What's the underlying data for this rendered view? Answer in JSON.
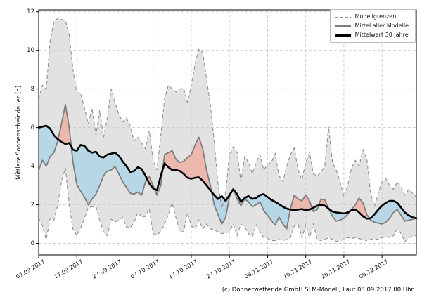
{
  "chart_data": {
    "type": "area",
    "title": "",
    "ylabel": "Mittlere Sonnenscheindauer [h]",
    "xlabel": "",
    "ylim": [
      -0.6,
      12.1
    ],
    "yticks": [
      0,
      2,
      4,
      6,
      8,
      10,
      12
    ],
    "grid": true,
    "x_tick_labels": [
      "07.09.2017",
      "17.09.2017",
      "27.09.2017",
      "07.10.2017",
      "17.10.2017",
      "27.10.2017",
      "06.11.2017",
      "16.11.2017",
      "26.11.2017",
      "06.12.2017"
    ],
    "x_tick_days": [
      0,
      10,
      20,
      30,
      40,
      50,
      60,
      70,
      80,
      90
    ],
    "x_total_days": 99,
    "legend_position": "top-right",
    "legend_entries": [
      {
        "label": "Modellgrenzen",
        "style": "dashed"
      },
      {
        "label": "Mittel aller Modelle",
        "style": "mean"
      },
      {
        "label": "Mittelwert 30 Jahre",
        "style": "climate"
      }
    ],
    "colors": {
      "band_fill": "#e2e2e2",
      "band_border": "#8f8f8f",
      "above_climate_fill": "#eeb1a4",
      "below_climate_fill": "#aed4e7",
      "model_mean_line": "#7d7d7d",
      "climate_line": "#000000",
      "grid": "#cbcbcb",
      "spine": "#000000"
    },
    "series": [
      {
        "id": "model_max",
        "name": "Modellgrenzen (Maximum)",
        "values": [
          7.5,
          8.2,
          8.0,
          10.5,
          11.5,
          11.65,
          11.6,
          11.55,
          10.8,
          9.0,
          7.8,
          7.8,
          7.0,
          6.2,
          7.0,
          5.6,
          6.9,
          5.5,
          6.5,
          8.0,
          7.3,
          6.7,
          6.3,
          6.5,
          6.1,
          5.3,
          5.5,
          5.2,
          4.9,
          5.85,
          4.3,
          3.8,
          5.6,
          7.5,
          8.2,
          8.0,
          7.85,
          8.0,
          8.05,
          7.3,
          8.2,
          9.3,
          10.05,
          9.9,
          8.5,
          7.2,
          5.3,
          3.1,
          1.8,
          2.6,
          4.6,
          5.0,
          4.7,
          3.2,
          4.5,
          4.2,
          3.6,
          4.2,
          4.6,
          3.8,
          4.1,
          4.2,
          4.65,
          3.5,
          3.2,
          4.0,
          4.6,
          4.95,
          3.8,
          3.3,
          4.2,
          4.7,
          3.6,
          3.5,
          3.7,
          4.0,
          6.05,
          4.2,
          3.8,
          3.2,
          2.4,
          3.0,
          3.9,
          4.3,
          4.0,
          4.85,
          4.4,
          2.6,
          1.9,
          2.6,
          3.2,
          3.35,
          3.0,
          2.8,
          3.2,
          2.9,
          2.5,
          2.8,
          2.6,
          2.4
        ]
      },
      {
        "id": "model_min",
        "name": "Modellgrenzen (Minimum)",
        "values": [
          1.3,
          0.9,
          0.2,
          1.3,
          1.2,
          2.0,
          3.2,
          3.9,
          2.0,
          0.75,
          0.4,
          0.8,
          1.3,
          1.85,
          1.9,
          1.9,
          1.2,
          0.6,
          0.4,
          1.25,
          1.1,
          1.2,
          1.35,
          0.85,
          0.8,
          1.1,
          1.6,
          1.35,
          1.4,
          1.8,
          0.5,
          0.45,
          0.6,
          1.0,
          1.5,
          2.1,
          1.3,
          0.6,
          0.6,
          1.6,
          0.9,
          0.75,
          1.2,
          0.75,
          1.0,
          0.75,
          0.7,
          0.6,
          0.5,
          0.55,
          0.6,
          1.0,
          0.4,
          1.0,
          0.85,
          0.5,
          0.35,
          0.95,
          0.6,
          0.3,
          0.25,
          0.15,
          0.15,
          0.2,
          0.15,
          0.2,
          0.3,
          0.9,
          1.0,
          0.3,
          0.95,
          0.3,
          1.0,
          0.2,
          0.15,
          0.2,
          0.3,
          0.2,
          0.1,
          0.15,
          0.2,
          0.3,
          0.25,
          0.3,
          0.25,
          0.2,
          0.15,
          0.2,
          0.25,
          0.2,
          0.3,
          0.35,
          0.3,
          0.4,
          0.75,
          0.5,
          0.1,
          0.3,
          0.35,
          0.4
        ]
      },
      {
        "id": "model_mean",
        "name": "Mittel aller Modelle",
        "values": [
          3.8,
          4.3,
          4.0,
          4.5,
          4.7,
          5.3,
          6.2,
          7.2,
          6.0,
          4.2,
          3.05,
          2.7,
          2.4,
          2.0,
          2.3,
          2.55,
          3.0,
          3.5,
          3.75,
          3.8,
          4.0,
          3.6,
          3.2,
          2.9,
          2.6,
          2.55,
          2.65,
          2.5,
          3.2,
          3.45,
          3.0,
          2.5,
          3.0,
          4.6,
          4.7,
          4.8,
          4.35,
          4.2,
          4.25,
          4.45,
          4.6,
          5.1,
          5.5,
          4.9,
          3.8,
          3.0,
          2.0,
          1.5,
          1.0,
          1.35,
          2.4,
          2.85,
          2.3,
          1.95,
          2.3,
          2.15,
          1.9,
          2.0,
          2.15,
          1.7,
          1.45,
          1.18,
          0.95,
          1.36,
          1.0,
          0.75,
          1.8,
          2.5,
          2.3,
          2.2,
          2.5,
          2.2,
          1.65,
          1.75,
          2.3,
          2.25,
          1.8,
          1.4,
          1.15,
          1.2,
          1.3,
          1.5,
          1.75,
          2.0,
          2.35,
          2.1,
          1.5,
          1.2,
          1.1,
          1.05,
          1.0,
          1.1,
          1.3,
          1.6,
          1.75,
          1.45,
          1.15,
          1.2,
          1.25,
          1.3
        ]
      },
      {
        "id": "mean_30y",
        "name": "Mittelwert 30 Jahre",
        "values": [
          6.0,
          6.05,
          6.1,
          5.95,
          5.6,
          5.4,
          5.25,
          5.15,
          5.2,
          4.85,
          4.8,
          5.1,
          5.05,
          4.8,
          4.7,
          4.75,
          4.5,
          4.45,
          4.6,
          4.65,
          4.7,
          4.55,
          4.25,
          4.0,
          3.7,
          3.75,
          3.95,
          3.85,
          3.5,
          3.1,
          2.85,
          2.75,
          3.5,
          4.15,
          3.95,
          3.8,
          3.8,
          3.75,
          3.6,
          3.4,
          3.35,
          3.4,
          3.42,
          3.25,
          3.0,
          2.75,
          2.5,
          2.3,
          2.45,
          2.2,
          2.5,
          2.8,
          2.55,
          2.15,
          2.35,
          2.45,
          2.3,
          2.35,
          2.5,
          2.55,
          2.4,
          2.25,
          2.15,
          2.03,
          1.9,
          1.8,
          1.75,
          1.72,
          1.75,
          1.78,
          1.72,
          1.75,
          1.85,
          1.95,
          2.0,
          1.95,
          1.8,
          1.65,
          1.6,
          1.58,
          1.55,
          1.6,
          1.72,
          1.75,
          1.6,
          1.4,
          1.28,
          1.3,
          1.5,
          1.75,
          1.95,
          2.1,
          2.2,
          2.2,
          2.1,
          1.85,
          1.6,
          1.45,
          1.35,
          1.3
        ]
      }
    ]
  },
  "footer": {
    "credit": "(c) Donnerwetter.de GmbH SLM-Modell, Lauf 08.09.2017 00 Uhr"
  }
}
